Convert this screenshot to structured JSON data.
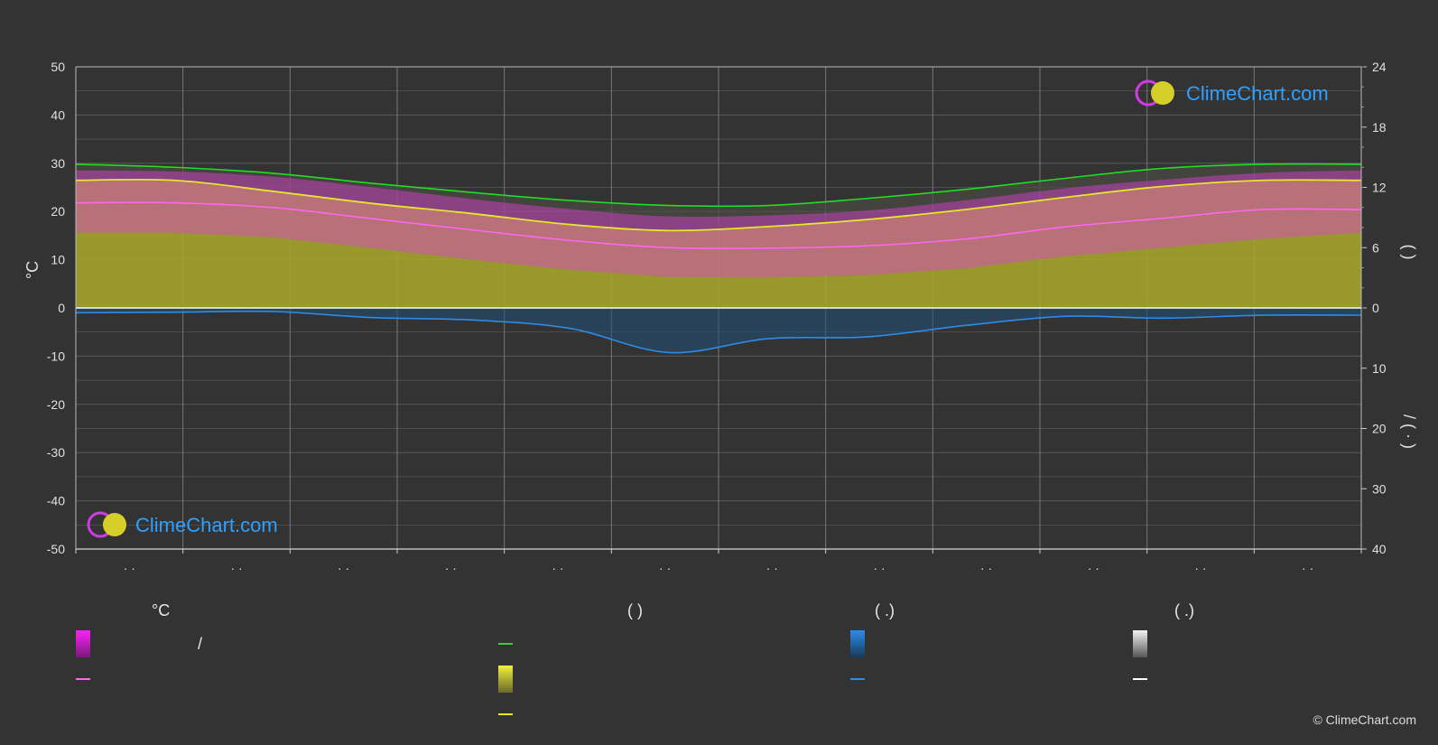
{
  "colors": {
    "background": "#333333",
    "grid": "#5a5a5a",
    "daylight": "#22dd22",
    "sunshine": "#e6e62e",
    "avg_temp": "#ff66ee",
    "rain": "#2e8be6",
    "temp_band": "#e040d8"
  },
  "watermark": {
    "text": "ClimeChart.com"
  },
  "copyright": "© ClimeChart.com",
  "axes": {
    "left_title": "°C",
    "right_top_title": "(  )",
    "right_bottom_title": "/  (  ·  )"
  },
  "legend": {
    "groups": [
      {
        "heading": "°C",
        "items": [
          {
            "swatch": "band-magenta",
            "label": "/"
          },
          {
            "swatch": "line-pink",
            "label": ""
          }
        ]
      },
      {
        "heading": "(  )",
        "items": [
          {
            "swatch": "line-green",
            "label": ""
          },
          {
            "swatch": "band-yellow",
            "label": ""
          },
          {
            "swatch": "line-yellow",
            "label": ""
          }
        ]
      },
      {
        "heading": "(  .)",
        "items": [
          {
            "swatch": "band-blue",
            "label": ""
          },
          {
            "swatch": "line-blue",
            "label": ""
          }
        ]
      },
      {
        "heading": "(  .)",
        "items": [
          {
            "swatch": "band-white",
            "label": ""
          },
          {
            "swatch": "line-white",
            "label": ""
          }
        ]
      }
    ]
  },
  "chart_data": {
    "type": "line",
    "x_tick_labels": [
      "· ·",
      "· ·",
      "· ·",
      "· ·",
      "· ·",
      "· ·",
      "· ·",
      "· ·",
      "· ·",
      "· ·",
      "· ·",
      "· ·"
    ],
    "left_axis": {
      "ylim": [
        -50,
        50
      ],
      "ticks": [
        50,
        40,
        30,
        20,
        10,
        0,
        -10,
        -20,
        -30,
        -40,
        -50
      ]
    },
    "right_axis_top": {
      "ylim": [
        0,
        24
      ],
      "ticks": [
        24,
        18,
        12,
        6,
        0
      ]
    },
    "right_axis_bottom": {
      "ylim": [
        0,
        40
      ],
      "ticks": [
        10,
        20,
        30,
        40
      ]
    },
    "grid": true,
    "series": [
      {
        "key": "daylight",
        "unit": "hours",
        "values": [
          14.3,
          14.0,
          13.4,
          12.4,
          11.5,
          10.7,
          10.2,
          10.2,
          10.9,
          11.8,
          12.9,
          13.9,
          14.3,
          14.3
        ]
      },
      {
        "key": "sunshine",
        "unit": "hours",
        "values": [
          12.7,
          12.7,
          11.6,
          10.4,
          9.4,
          8.3,
          7.7,
          8.1,
          8.8,
          9.8,
          11.0,
          12.1,
          12.7,
          12.7
        ]
      },
      {
        "key": "avg_temp",
        "unit": "°C",
        "values": [
          21.8,
          21.8,
          20.8,
          18.5,
          16.2,
          14.0,
          12.5,
          12.4,
          12.9,
          14.3,
          16.8,
          18.6,
          20.4,
          20.4
        ]
      },
      {
        "key": "temp_max",
        "unit": "°C",
        "values": [
          28.5,
          28.3,
          27.2,
          25.0,
          22.6,
          20.5,
          19.0,
          19.2,
          20.2,
          22.3,
          24.8,
          26.6,
          28.0,
          28.5
        ]
      },
      {
        "key": "temp_min",
        "unit": "°C",
        "values": [
          15.6,
          15.6,
          14.6,
          12.4,
          10.0,
          7.9,
          6.4,
          6.3,
          6.8,
          8.2,
          10.7,
          12.5,
          14.3,
          15.6
        ]
      },
      {
        "key": "precipitation",
        "unit": "mm",
        "values": [
          0.8,
          0.7,
          0.6,
          1.6,
          2.0,
          3.4,
          7.4,
          5.1,
          4.8,
          2.9,
          1.4,
          1.7,
          1.2,
          1.2
        ]
      }
    ]
  }
}
